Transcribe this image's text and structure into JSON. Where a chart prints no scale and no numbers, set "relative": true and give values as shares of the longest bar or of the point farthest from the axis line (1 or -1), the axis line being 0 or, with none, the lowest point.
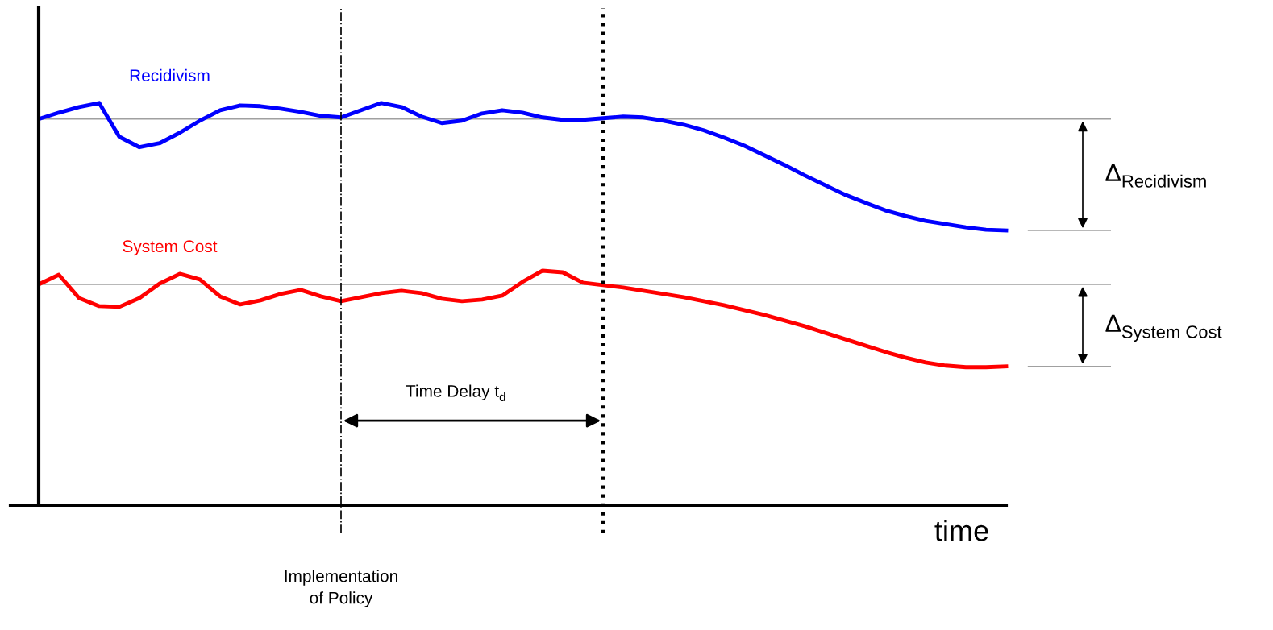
{
  "chart_data": {
    "type": "line",
    "relative": true,
    "xlabel": "time",
    "categories": [
      null,
      null,
      null,
      null,
      null,
      null,
      null,
      null,
      null,
      null,
      null,
      null,
      null,
      null,
      null,
      null,
      null,
      null,
      null,
      null,
      null,
      null,
      null,
      null,
      null,
      null,
      null,
      null,
      null,
      null,
      null,
      null,
      null,
      null,
      null,
      null,
      null,
      null,
      null,
      null,
      null,
      null,
      null,
      null,
      null,
      null,
      null,
      null,
      null
    ],
    "series": [
      {
        "name": "Recidivism",
        "color": "#0000ff",
        "values": [
          0.96,
          0.976,
          0.99,
          1.0,
          0.916,
          0.89,
          0.9,
          0.926,
          0.956,
          0.982,
          0.994,
          0.992,
          0.986,
          0.978,
          0.968,
          0.964,
          0.982,
          1.0,
          0.99,
          0.966,
          0.95,
          0.956,
          0.974,
          0.982,
          0.976,
          0.964,
          0.958,
          0.958,
          0.962,
          0.966,
          0.964,
          0.956,
          0.946,
          0.932,
          0.914,
          0.894,
          0.87,
          0.846,
          0.82,
          0.796,
          0.772,
          0.752,
          0.733,
          0.719,
          0.707,
          0.699,
          0.691,
          0.685,
          0.683
        ]
      },
      {
        "name": "System Cost",
        "color": "#ff0000",
        "values": [
          0.549,
          0.573,
          0.515,
          0.495,
          0.493,
          0.515,
          0.551,
          0.575,
          0.561,
          0.519,
          0.499,
          0.509,
          0.525,
          0.535,
          0.519,
          0.507,
          0.517,
          0.527,
          0.533,
          0.527,
          0.513,
          0.507,
          0.511,
          0.521,
          0.555,
          0.583,
          0.579,
          0.553,
          0.547,
          0.541,
          0.533,
          0.525,
          0.517,
          0.507,
          0.497,
          0.485,
          0.473,
          0.459,
          0.445,
          0.429,
          0.413,
          0.397,
          0.381,
          0.367,
          0.355,
          0.347,
          0.343,
          0.343,
          0.345
        ]
      }
    ],
    "ref_lines": [
      {
        "axis": "y",
        "value": 0.96,
        "color": "#a0a0a0"
      },
      {
        "axis": "y",
        "value": 0.549,
        "color": "#a0a0a0"
      }
    ],
    "annotations": [
      "Time Delay t$_{d}$",
      "Δ$_{Recidivism}$",
      "Δ$_{System Cost}$",
      "Implementation\nof Policy"
    ],
    "grid": false,
    "line_style": "solid",
    "marker": "none"
  }
}
